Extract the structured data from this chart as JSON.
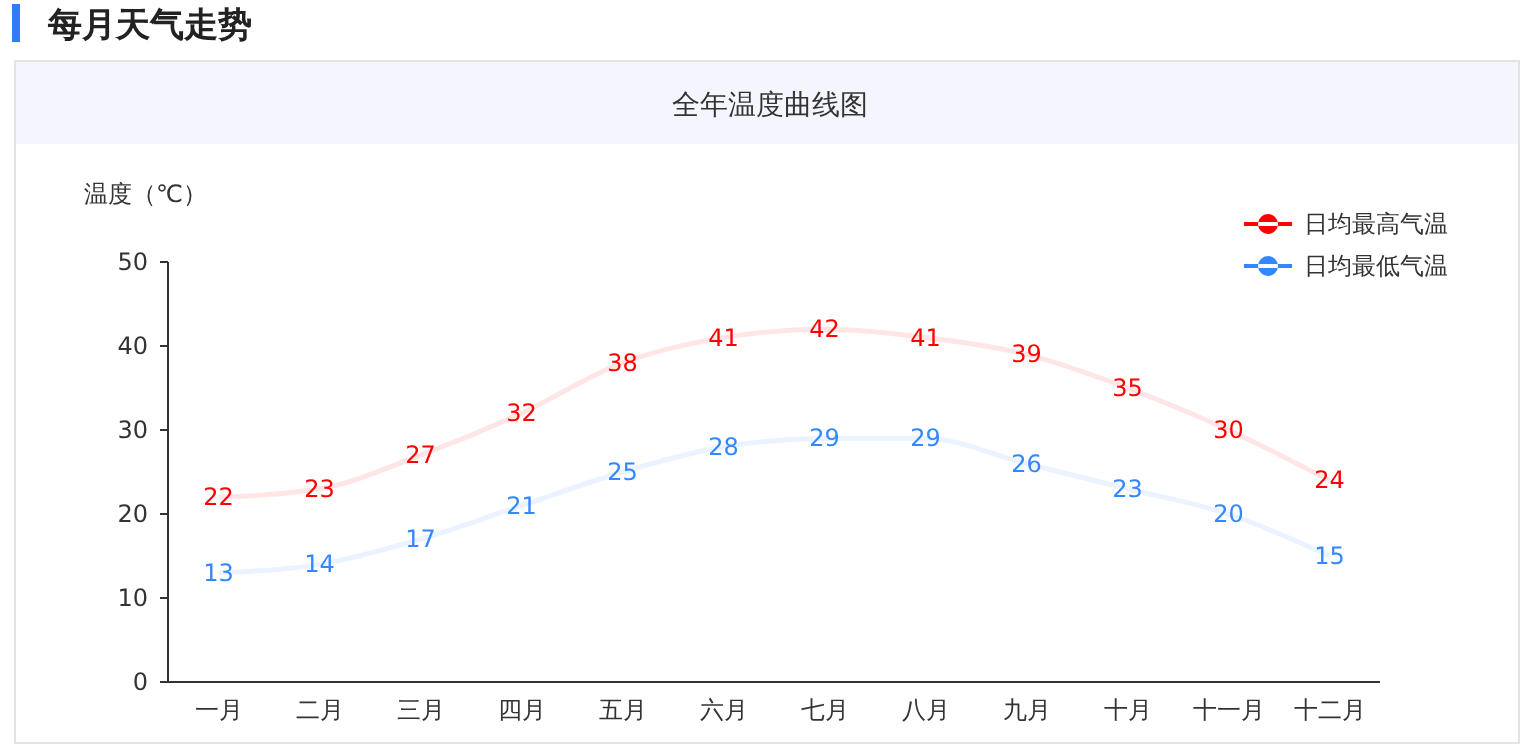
{
  "chart_data": {
    "type": "line",
    "title": "每月天气走势",
    "subtitle": "全年温度曲线图",
    "ylabel": "温度（℃）",
    "categories": [
      "一月",
      "二月",
      "三月",
      "四月",
      "五月",
      "六月",
      "七月",
      "八月",
      "九月",
      "十月",
      "十一月",
      "十二月"
    ],
    "series": [
      {
        "name": "日均最高气温",
        "color": "#ff0000",
        "values": [
          22,
          23,
          27,
          32,
          38,
          41,
          42,
          41,
          39,
          35,
          30,
          24
        ]
      },
      {
        "name": "日均最低气温",
        "color": "#3388ff",
        "values": [
          13,
          14,
          17,
          21,
          25,
          28,
          29,
          29,
          26,
          23,
          20,
          15
        ]
      }
    ],
    "ylim": [
      0,
      50
    ],
    "yticks": [
      0,
      10,
      20,
      30,
      40,
      50
    ],
    "grid": false,
    "legend": "top right",
    "data_labels": true,
    "marker": "none"
  }
}
